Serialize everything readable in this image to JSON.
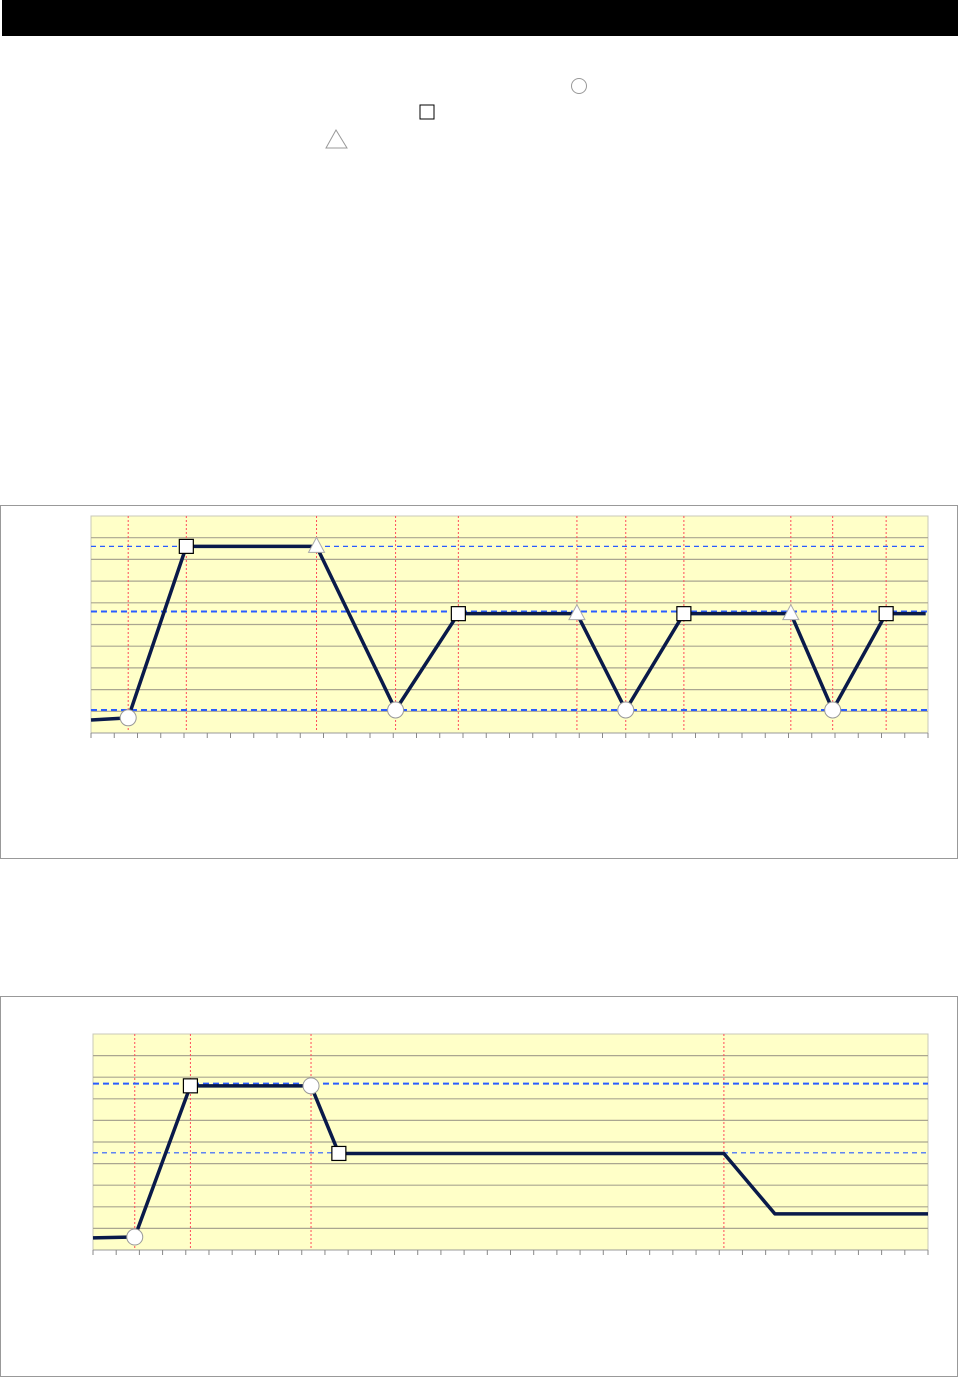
{
  "legend": {
    "markers": [
      "circle",
      "square",
      "triangle"
    ]
  },
  "colors": {
    "plot_bg": "#ffffc8",
    "line": "#0a1a4a",
    "ref_line": "#2a5cff",
    "event_line": "#ff4a5a",
    "grid": "#aaa690"
  },
  "chart_data": [
    {
      "type": "line",
      "xlim": [
        0,
        36
      ],
      "ylim": [
        0,
        10
      ],
      "grid": true,
      "series": [
        {
          "x": [
            0,
            1.6,
            4.1,
            9.7,
            13.1,
            15.8,
            20.9,
            23.0,
            25.5,
            30.1,
            31.9,
            34.2,
            35.9
          ],
          "y": [
            0.6,
            0.7,
            8.6,
            8.6,
            1.06,
            5.5,
            5.5,
            1.06,
            5.5,
            5.5,
            1.06,
            5.5,
            5.5
          ],
          "markers": [
            "none",
            "circle",
            "square",
            "triangle",
            "circle",
            "square",
            "triangle",
            "circle",
            "square",
            "triangle",
            "circle",
            "square",
            "none"
          ]
        }
      ],
      "reference_lines": [
        {
          "y": 8.6,
          "style": "thin-dashed"
        },
        {
          "y": 5.6,
          "style": "thick-dashed"
        },
        {
          "y": 1.06,
          "style": "thick-dashed"
        }
      ],
      "event_lines_x": [
        1.6,
        4.1,
        9.7,
        13.1,
        15.8,
        20.9,
        23.0,
        25.5,
        30.1,
        31.9,
        34.2
      ]
    },
    {
      "type": "line",
      "xlim": [
        0,
        36
      ],
      "ylim": [
        0,
        10
      ],
      "grid": true,
      "series": [
        {
          "x": [
            0,
            1.8,
            4.2,
            9.4,
            10.6,
            27.2,
            29.4,
            36
          ],
          "y": [
            0.56,
            0.6,
            7.6,
            7.6,
            4.47,
            4.47,
            1.67,
            1.67
          ],
          "markers": [
            "none",
            "circle",
            "square",
            "circle",
            "square",
            "none",
            "none",
            "none"
          ]
        }
      ],
      "reference_lines": [
        {
          "y": 7.7,
          "style": "thick-dashed"
        },
        {
          "y": 4.5,
          "style": "thin-dashed"
        }
      ],
      "event_lines_x": [
        1.8,
        4.2,
        9.4,
        27.2
      ]
    }
  ]
}
